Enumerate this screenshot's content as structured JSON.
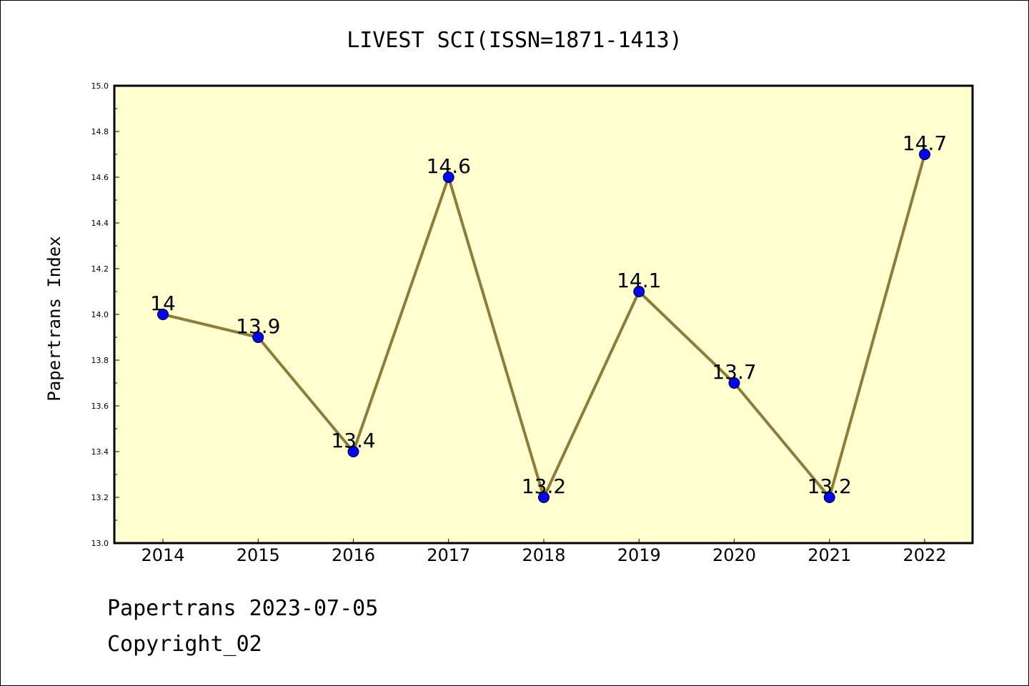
{
  "chart_data": {
    "type": "line",
    "title": "LIVEST SCI(ISSN=1871-1413)",
    "ylabel": "Papertrans Index",
    "xlabel": "",
    "categories": [
      "2014",
      "2015",
      "2016",
      "2017",
      "2018",
      "2019",
      "2020",
      "2021",
      "2022"
    ],
    "values": [
      14.0,
      13.9,
      13.4,
      14.6,
      13.2,
      14.1,
      13.7,
      13.2,
      14.7
    ],
    "data_labels": [
      "14",
      "13.9",
      "13.4",
      "14.6",
      "13.2",
      "14.1",
      "13.7",
      "13.2",
      "14.7"
    ],
    "ylim": [
      13.0,
      15.0
    ],
    "yticks": [
      "13.0",
      "13.2",
      "13.4",
      "13.6",
      "13.8",
      "14.0",
      "14.2",
      "14.4",
      "14.6",
      "14.8",
      "15.0"
    ],
    "grid": false,
    "colors": {
      "plot_background": "#ffffd0",
      "line": "#8b7d3a",
      "marker": "#0000ff"
    }
  },
  "footer": {
    "line1": "Papertrans 2023-07-05",
    "line2": "Copyright_02"
  }
}
